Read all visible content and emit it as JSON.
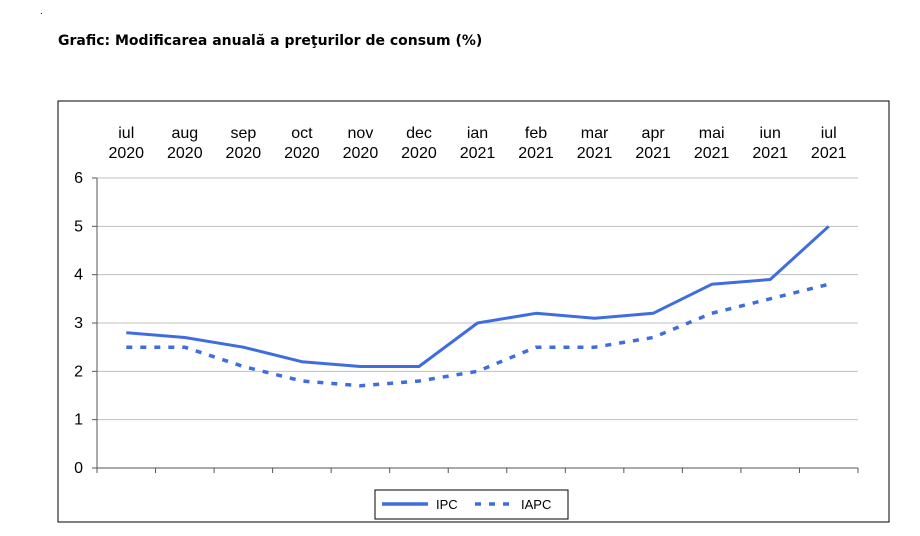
{
  "top_mark": ".",
  "title": "Grafic: Modificarea anuală a preţurilor de consum (%)",
  "chart_data": {
    "type": "line",
    "title": "Grafic: Modificarea anuală a preţurilor de consum (%)",
    "categories": [
      [
        "iul",
        "2020"
      ],
      [
        "aug",
        "2020"
      ],
      [
        "sep",
        "2020"
      ],
      [
        "oct",
        "2020"
      ],
      [
        "nov",
        "2020"
      ],
      [
        "dec",
        "2020"
      ],
      [
        "ian",
        "2021"
      ],
      [
        "feb",
        "2021"
      ],
      [
        "mar",
        "2021"
      ],
      [
        "apr",
        "2021"
      ],
      [
        "mai",
        "2021"
      ],
      [
        "iun",
        "2021"
      ],
      [
        "iul",
        "2021"
      ]
    ],
    "series": [
      {
        "name": "IPC",
        "style": "solid",
        "color": "#3f6de0",
        "values": [
          2.8,
          2.7,
          2.5,
          2.2,
          2.1,
          2.1,
          3.0,
          3.2,
          3.1,
          3.2,
          3.8,
          3.9,
          5.0
        ]
      },
      {
        "name": "IAPC",
        "style": "dashed",
        "color": "#3f6de0",
        "values": [
          2.5,
          2.5,
          2.1,
          1.8,
          1.7,
          1.8,
          2.0,
          2.5,
          2.5,
          2.7,
          3.2,
          3.5,
          3.8
        ]
      }
    ],
    "y_ticks": [
      "0",
      "1",
      "2",
      "3",
      "4",
      "5",
      "6"
    ],
    "ylim": [
      0,
      6
    ],
    "grid": true,
    "x_labels_position": "top",
    "legend_position": "bottom-center"
  }
}
